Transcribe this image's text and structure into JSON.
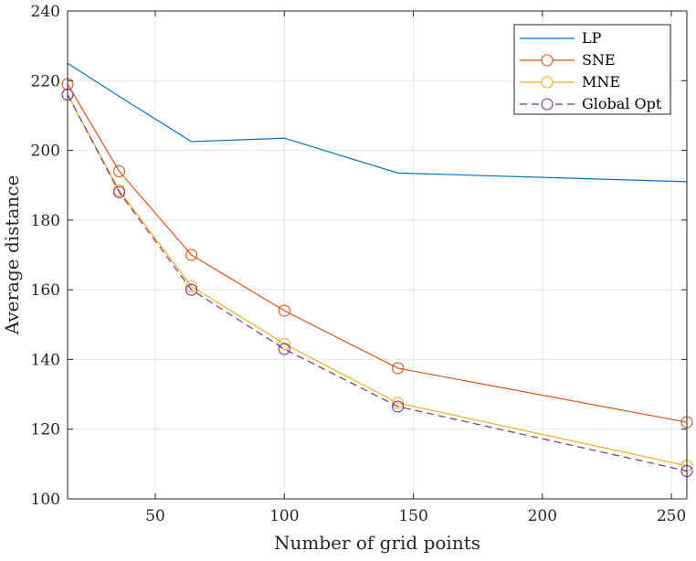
{
  "chart_data": {
    "type": "line",
    "title": "",
    "xlabel": "Number of grid points",
    "ylabel": "Average distance",
    "xlim": [
      16,
      256
    ],
    "ylim": [
      100,
      240
    ],
    "x_ticks": [
      50,
      100,
      150,
      200,
      250
    ],
    "y_ticks": [
      100,
      120,
      140,
      160,
      180,
      200,
      220,
      240
    ],
    "x_tick_labels": [
      "50",
      "100",
      "150",
      "200",
      "250"
    ],
    "y_tick_labels": [
      "100",
      "120",
      "140",
      "160",
      "180",
      "200",
      "220",
      "240"
    ],
    "grid": true,
    "legend_position": "top-right",
    "x": [
      16,
      36,
      64,
      100,
      144,
      256
    ],
    "series": [
      {
        "name": "LP",
        "values": [
          225,
          215.5,
          202.5,
          203.5,
          193.5,
          191
        ],
        "color": "#0072BD",
        "marker": "none",
        "dash": "solid"
      },
      {
        "name": "SNE",
        "values": [
          219,
          194,
          170,
          154,
          137.5,
          122
        ],
        "color": "#D95319",
        "marker": "circle",
        "dash": "solid"
      },
      {
        "name": "MNE",
        "values": [
          216,
          188.5,
          161,
          144.5,
          127.5,
          109.5
        ],
        "color": "#EDB120",
        "marker": "circle",
        "dash": "solid"
      },
      {
        "name": "Global Opt",
        "values": [
          216,
          188,
          160,
          143,
          126.5,
          108
        ],
        "color": "#7E2F8E",
        "marker": "circle",
        "dash": "dashed"
      }
    ]
  }
}
